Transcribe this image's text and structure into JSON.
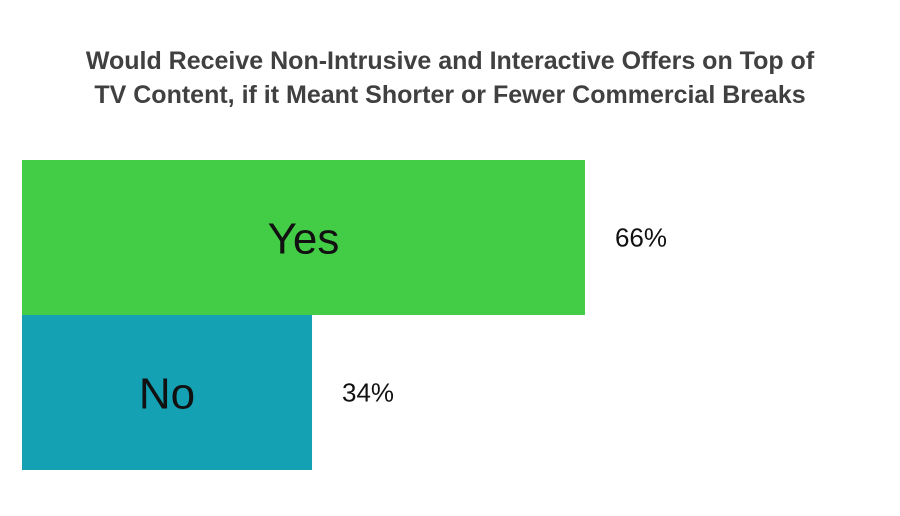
{
  "chart_data": {
    "type": "bar",
    "orientation": "horizontal",
    "title_lines": [
      "Would Receive Non-Intrusive and Interactive Offers on Top of",
      "TV Content, if it Meant Shorter or Fewer Commercial Breaks"
    ],
    "categories": [
      "Yes",
      "No"
    ],
    "values": [
      66,
      34
    ],
    "value_labels": [
      "66%",
      "34%"
    ],
    "colors": [
      "#43cd47",
      "#13a1b3"
    ],
    "xlim": [
      0,
      100
    ],
    "grid": false,
    "legend": "none"
  }
}
